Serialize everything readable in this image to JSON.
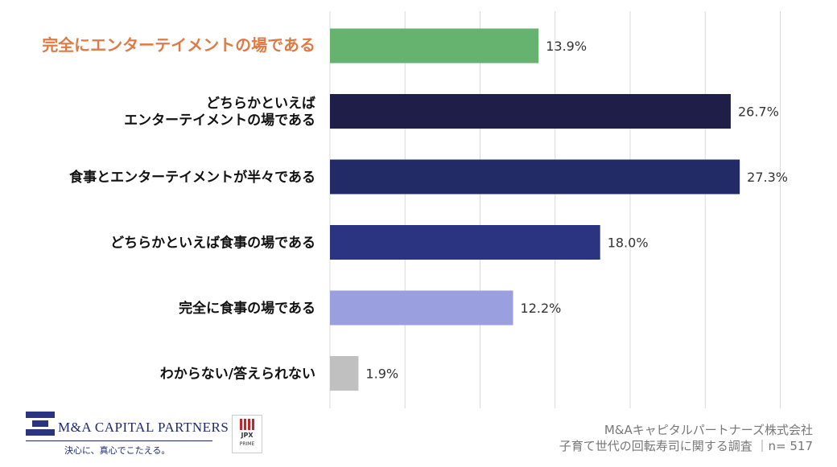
{
  "chart_data": {
    "type": "bar",
    "orientation": "horizontal",
    "categories": [
      "完全にエンターテイメントの場である",
      "どちらかといえば\nエンターテイメントの場である",
      "食事とエンターテイメントが半々である",
      "どちらかといえば食事の場である",
      "完全に食事の場である",
      "わからない/答えられない"
    ],
    "values": [
      13.9,
      26.7,
      27.3,
      18.0,
      12.2,
      1.9
    ],
    "value_labels": [
      "13.9%",
      "26.7%",
      "27.3%",
      "18.0%",
      "12.2%",
      "1.9%"
    ],
    "bar_colors": [
      "#66b26f",
      "#1e1e48",
      "#222b66",
      "#2a3480",
      "#9aa0df",
      "#c0c0c0"
    ],
    "label_colors": [
      "#e07a45",
      "#111111",
      "#111111",
      "#111111",
      "#111111",
      "#111111"
    ],
    "xlim": [
      0,
      30
    ],
    "grid": true,
    "legend": "none"
  },
  "footer": {
    "company_line": "M&Aキャピタルパートナーズ株式会社",
    "survey_line": "子育て世代の回転寿司に関する調査 ｜n= 517"
  },
  "logo": {
    "name": "M&A CAPITAL PARTNERS",
    "tagline": "決心に、真心でこたえる。",
    "jpx_name": "JPX",
    "jpx_sub": "PRIME"
  },
  "colors": {
    "gridline": "#d9d9d9",
    "logo_navy": "#1f2a6e"
  }
}
